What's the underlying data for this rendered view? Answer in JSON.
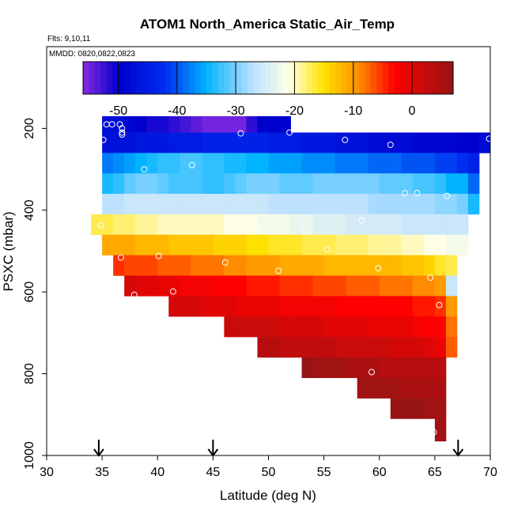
{
  "chart_data": {
    "type": "heatmap",
    "title": "ATOM1 North_America Static_Air_Temp",
    "flights_label": "Flts: 9,10,11",
    "dates_label": "MMDD: 0820,0822,0823",
    "xlabel": "Latitude (deg N)",
    "ylabel": "PSXC (mbar)",
    "xlim": [
      30,
      70
    ],
    "ylim": [
      1000,
      0
    ],
    "x_ticks": [
      "30",
      "35",
      "40",
      "45",
      "50",
      "55",
      "60",
      "65",
      "70"
    ],
    "y_ticks": [
      "200",
      "400",
      "600",
      "800",
      "1000"
    ],
    "colorbar": {
      "range": [
        -56,
        7
      ],
      "ticks": [
        "-50",
        "-40",
        "-30",
        "-20",
        "-10",
        "0"
      ]
    },
    "cells": [
      {
        "p_top": 170,
        "p_bot": 210,
        "lat_min": 35,
        "lat_max": 52,
        "temp": [
          -48,
          -48,
          -49,
          -50,
          -51,
          -51,
          -52,
          -53,
          -54,
          -55,
          -55,
          -55,
          -55,
          -52,
          -50,
          -50,
          -50
        ]
      },
      {
        "p_top": 210,
        "p_bot": 260,
        "lat_min": 35,
        "lat_max": 70,
        "temp": [
          -47,
          -47,
          -47,
          -46,
          -46,
          -46,
          -45,
          -45,
          -45,
          -44,
          -44,
          -44,
          -44,
          -44,
          -44,
          -45,
          -45,
          -45,
          -46,
          -46,
          -46,
          -47,
          -47,
          -47,
          -48,
          -48,
          -48,
          -48,
          -49,
          -49,
          -49,
          -49,
          -50,
          -50,
          -48
        ]
      },
      {
        "p_top": 260,
        "p_bot": 310,
        "lat_min": 35,
        "lat_max": 69,
        "temp": [
          -38,
          -37,
          -36,
          -35,
          -34,
          -33,
          -33,
          -32,
          -32,
          -33,
          -33,
          -34,
          -34,
          -35,
          -35,
          -36,
          -36,
          -36,
          -37,
          -37,
          -37,
          -38,
          -38,
          -38,
          -39,
          -39,
          -39,
          -40,
          -40,
          -40,
          -41,
          -41,
          -42,
          -44
        ]
      },
      {
        "p_top": 310,
        "p_bot": 360,
        "lat_min": 35,
        "lat_max": 69,
        "temp": [
          -34,
          -33,
          -31,
          -30,
          -30,
          -31,
          -32,
          -32,
          -32,
          -33,
          -33,
          -32,
          -31,
          -30,
          -30,
          -30,
          -31,
          -31,
          -31,
          -30,
          -30,
          -30,
          -30,
          -30,
          -30,
          -31,
          -31,
          -31,
          -32,
          -32,
          -33,
          -35,
          -35,
          -39
        ]
      },
      {
        "p_top": 360,
        "p_bot": 410,
        "lat_min": 35,
        "lat_max": 69,
        "temp": [
          -27,
          -27,
          -26,
          -26,
          -26,
          -26,
          -26,
          -26,
          -26,
          -26,
          -26,
          -26,
          -26,
          -26,
          -26,
          -27,
          -27,
          -27,
          -27,
          -27,
          -27,
          -27,
          -27,
          -27,
          -28,
          -28,
          -28,
          -28,
          -28,
          -28,
          -29,
          -29,
          -30,
          -34
        ]
      },
      {
        "p_top": 410,
        "p_bot": 460,
        "lat_min": 34,
        "lat_max": 68,
        "temp": [
          -17,
          -17,
          -18,
          -18,
          -19,
          -19,
          -20,
          -20,
          -20,
          -20,
          -20,
          -20,
          -21,
          -21,
          -21,
          -22,
          -22,
          -22,
          -23,
          -23,
          -24,
          -24,
          -24,
          -25,
          -25,
          -25,
          -25,
          -25,
          -26,
          -26,
          -26,
          -26,
          -26,
          -26
        ]
      },
      {
        "p_top": 460,
        "p_bot": 510,
        "lat_min": 35,
        "lat_max": 68,
        "temp": [
          -11,
          -11,
          -11,
          -12,
          -12,
          -12,
          -13,
          -13,
          -13,
          -13,
          -14,
          -14,
          -14,
          -15,
          -15,
          -16,
          -16,
          -16,
          -17,
          -17,
          -17,
          -18,
          -18,
          -18,
          -19,
          -19,
          -19,
          -20,
          -20,
          -21,
          -21,
          -22,
          -22
        ]
      },
      {
        "p_top": 510,
        "p_bot": 560,
        "lat_min": 36,
        "lat_max": 67,
        "temp": [
          -5,
          -6,
          -6,
          -6,
          -7,
          -7,
          -7,
          -8,
          -8,
          -8,
          -9,
          -9,
          -10,
          -10,
          -10,
          -11,
          -11,
          -11,
          -11,
          -12,
          -12,
          -12,
          -12,
          -12,
          -12,
          -12,
          -13,
          -13,
          -14,
          -16,
          -17
        ]
      },
      {
        "p_top": 560,
        "p_bot": 610,
        "lat_min": 37,
        "lat_max": 67,
        "temp": [
          1,
          0,
          0,
          -1,
          -1,
          -2,
          -2,
          -2,
          -3,
          -3,
          -3,
          -4,
          -4,
          -4,
          -5,
          -5,
          -5,
          -6,
          -6,
          -6,
          -7,
          -7,
          -7,
          -8,
          -8,
          -8,
          -9,
          -9,
          -10,
          -26
        ]
      },
      {
        "p_top": 610,
        "p_bot": 660,
        "lat_min": 41,
        "lat_max": 67,
        "temp": [
          1,
          1,
          1,
          0,
          0,
          0,
          -1,
          -1,
          -1,
          -1,
          -2,
          -2,
          -2,
          -2,
          -2,
          -3,
          -3,
          -3,
          -3,
          -3,
          -3,
          -3,
          -4,
          -4,
          -5,
          -10
        ]
      },
      {
        "p_top": 660,
        "p_bot": 710,
        "lat_min": 46,
        "lat_max": 67,
        "temp": [
          2,
          2,
          2,
          2,
          2,
          1,
          1,
          1,
          1,
          0,
          0,
          0,
          0,
          -1,
          -1,
          -1,
          -1,
          -2,
          -3,
          -3,
          -8
        ]
      },
      {
        "p_top": 710,
        "p_bot": 760,
        "lat_min": 49,
        "lat_max": 67,
        "temp": [
          4,
          4,
          3,
          3,
          3,
          3,
          3,
          2,
          2,
          2,
          2,
          2,
          1,
          1,
          1,
          0,
          -1,
          -7
        ]
      },
      {
        "p_top": 760,
        "p_bot": 810,
        "lat_min": 53,
        "lat_max": 66,
        "temp": [
          7,
          6,
          6,
          6,
          5,
          5,
          5,
          4,
          4,
          4,
          4,
          4,
          4
        ]
      },
      {
        "p_top": 810,
        "p_bot": 860,
        "lat_min": 58,
        "lat_max": 66,
        "temp": [
          6,
          6,
          6,
          6,
          5,
          5,
          5,
          5
        ]
      },
      {
        "p_top": 860,
        "p_bot": 910,
        "lat_min": 61,
        "lat_max": 66,
        "temp": [
          7,
          7,
          7,
          6,
          6
        ]
      },
      {
        "p_top": 910,
        "p_bot": 965,
        "lat_min": 65,
        "lat_max": 66,
        "temp": [
          6
        ]
      }
    ],
    "observations": [
      [
        35.4,
        190
      ],
      [
        35.9,
        190
      ],
      [
        36.6,
        190
      ],
      [
        36.8,
        200
      ],
      [
        36.8,
        210
      ],
      [
        36.8,
        215
      ],
      [
        35.1,
        228
      ],
      [
        47.5,
        212
      ],
      [
        51.9,
        210
      ],
      [
        56.9,
        228
      ],
      [
        61.0,
        240
      ],
      [
        69.9,
        225
      ],
      [
        38.8,
        300
      ],
      [
        43.1,
        290
      ],
      [
        62.3,
        358
      ],
      [
        63.4,
        358
      ],
      [
        66.1,
        365
      ],
      [
        34.9,
        437
      ],
      [
        49.1,
        437
      ],
      [
        53.3,
        450
      ],
      [
        58.4,
        425
      ],
      [
        55.3,
        496
      ],
      [
        36.7,
        516
      ],
      [
        40.1,
        512
      ],
      [
        46.1,
        528
      ],
      [
        50.9,
        548
      ],
      [
        59.9,
        542
      ],
      [
        64.6,
        565
      ],
      [
        37.9,
        607
      ],
      [
        41.4,
        599
      ],
      [
        65.4,
        632
      ],
      [
        59.3,
        796
      ],
      [
        64.9,
        943
      ]
    ],
    "flight_markers_lat": [
      34.7,
      45.0,
      67.1
    ]
  }
}
